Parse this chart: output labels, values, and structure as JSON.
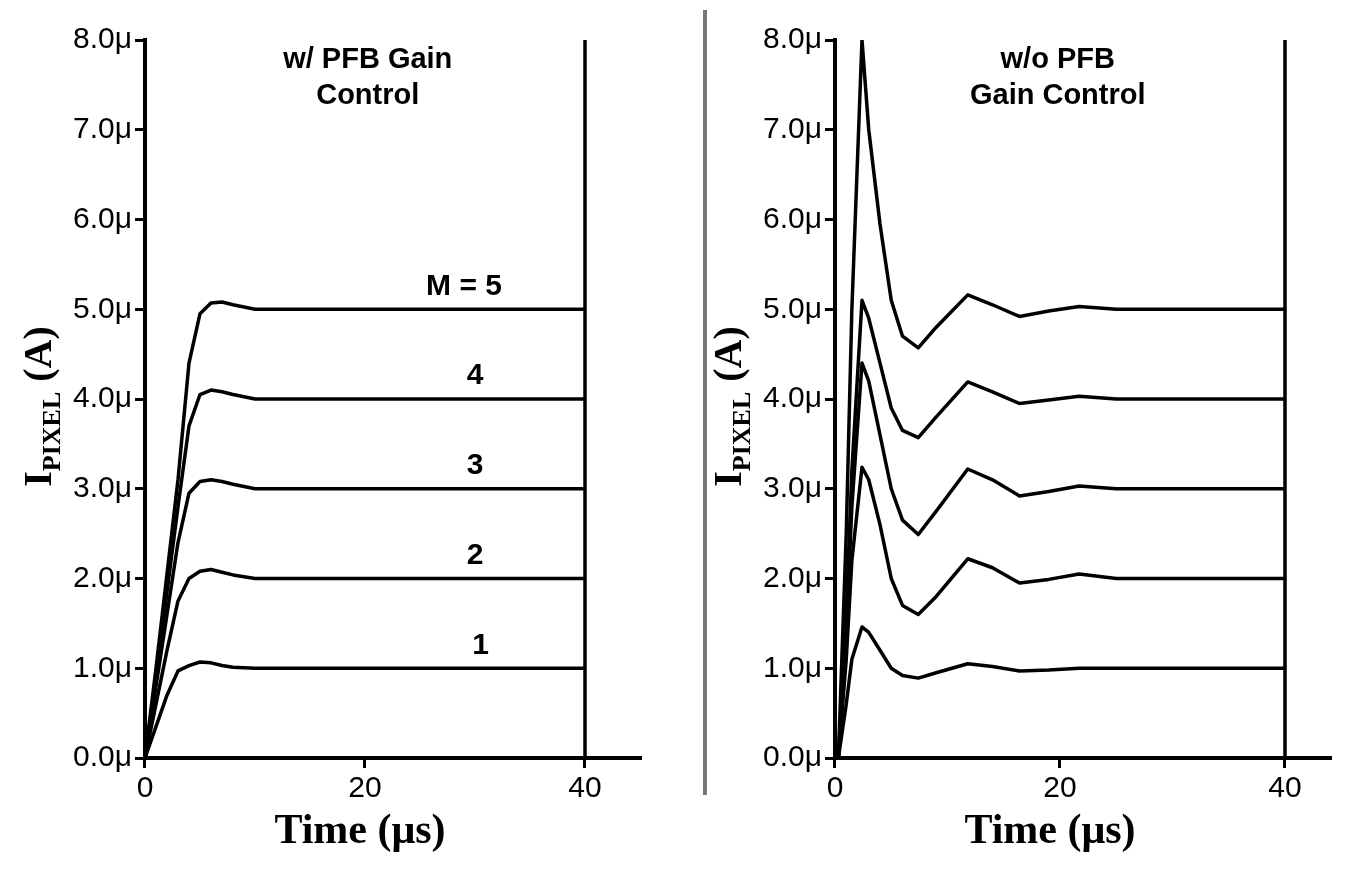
{
  "chart_data": [
    {
      "type": "line",
      "title": "w/ PFB Gain Control",
      "xlabel": "Time (μs)",
      "ylabel": "I$_{PIXEL}$ (A)",
      "xlim": [
        0,
        45
      ],
      "xticks": [
        0,
        20,
        40
      ],
      "ylim": [
        0,
        8
      ],
      "yticks": [
        {
          "value": 0,
          "label": "0.0μ"
        },
        {
          "value": 1,
          "label": "1.0μ"
        },
        {
          "value": 2,
          "label": "2.0μ"
        },
        {
          "value": 3,
          "label": "3.0μ"
        },
        {
          "value": 4,
          "label": "4.0μ"
        },
        {
          "value": 5,
          "label": "5.0μ"
        },
        {
          "value": 6,
          "label": "6.0μ"
        },
        {
          "value": 7,
          "label": "7.0μ"
        },
        {
          "value": 8,
          "label": "8.0μ"
        }
      ],
      "x": [
        0,
        1,
        2,
        3,
        4,
        5,
        6,
        7,
        8,
        10,
        20,
        30,
        40
      ],
      "series": [
        {
          "color": "#000000",
          "values": [
            0,
            0.35,
            0.7,
            0.97,
            1.03,
            1.07,
            1.06,
            1.03,
            1.01,
            1.0,
            1.0,
            1.0,
            1.0
          ]
        },
        {
          "color": "#000000",
          "values": [
            0,
            0.6,
            1.2,
            1.75,
            2.0,
            2.08,
            2.1,
            2.07,
            2.04,
            2.0,
            2.0,
            2.0,
            2.0
          ]
        },
        {
          "color": "#000000",
          "values": [
            0,
            0.8,
            1.6,
            2.4,
            2.95,
            3.08,
            3.1,
            3.08,
            3.05,
            3.0,
            3.0,
            3.0,
            3.0
          ]
        },
        {
          "color": "#000000",
          "values": [
            0,
            0.9,
            1.85,
            2.8,
            3.7,
            4.05,
            4.1,
            4.08,
            4.05,
            4.0,
            4.0,
            4.0,
            4.0
          ]
        },
        {
          "color": "#000000",
          "values": [
            0,
            1.0,
            2.05,
            3.1,
            4.4,
            4.95,
            5.07,
            5.08,
            5.05,
            5.0,
            5.0,
            5.0,
            5.0
          ]
        }
      ],
      "ref_lines": [
        {
          "axis": "x",
          "value": 40,
          "color": "#000000"
        }
      ],
      "annotations": [
        {
          "text": "M = 5",
          "x": 29,
          "y": 5
        },
        {
          "text": "4",
          "x": 30,
          "y": 4
        },
        {
          "text": "3",
          "x": 30,
          "y": 3
        },
        {
          "text": "2",
          "x": 30,
          "y": 2
        },
        {
          "text": "1",
          "x": 30.5,
          "y": 1
        }
      ]
    },
    {
      "type": "line",
      "title": "w/o PFB Gain Control",
      "xlabel": "Time (μs)",
      "ylabel": "I$_{PIXEL}$ (A)",
      "xlim": [
        0,
        44
      ],
      "xticks": [
        0,
        20,
        40
      ],
      "ylim": [
        0,
        8
      ],
      "yticks": [
        {
          "value": 0,
          "label": "0.0μ"
        },
        {
          "value": 1,
          "label": "1.0μ"
        },
        {
          "value": 2,
          "label": "2.0μ"
        },
        {
          "value": 3,
          "label": "3.0μ"
        },
        {
          "value": 4,
          "label": "4.0μ"
        },
        {
          "value": 5,
          "label": "5.0μ"
        },
        {
          "value": 6,
          "label": "6.0μ"
        },
        {
          "value": 7,
          "label": "7.0μ"
        },
        {
          "value": 8,
          "label": "8.0μ"
        }
      ],
      "x": [
        0,
        0.3,
        1,
        1.5,
        2.4,
        3,
        4,
        5,
        6,
        7.4,
        9,
        11.8,
        14,
        16.4,
        19,
        21.7,
        25,
        30,
        40
      ],
      "series": [
        {
          "color": "#000000",
          "values": [
            0,
            0,
            0.6,
            1.1,
            1.46,
            1.4,
            1.2,
            1.0,
            0.92,
            0.89,
            0.95,
            1.05,
            1.02,
            0.97,
            0.98,
            1.0,
            1.0,
            1.0,
            1.0
          ]
        },
        {
          "color": "#000000",
          "values": [
            0,
            0,
            1.1,
            2.2,
            3.24,
            3.1,
            2.6,
            2.0,
            1.7,
            1.6,
            1.8,
            2.22,
            2.12,
            1.95,
            1.99,
            2.05,
            2.0,
            2.0,
            2.0
          ]
        },
        {
          "color": "#000000",
          "values": [
            0,
            0,
            1.4,
            2.8,
            4.4,
            4.2,
            3.6,
            3.0,
            2.65,
            2.49,
            2.75,
            3.22,
            3.1,
            2.92,
            2.97,
            3.03,
            3.0,
            3.0,
            3.0
          ]
        },
        {
          "color": "#000000",
          "values": [
            0,
            0,
            1.6,
            3.2,
            5.1,
            4.9,
            4.4,
            3.9,
            3.65,
            3.57,
            3.8,
            4.19,
            4.08,
            3.95,
            3.99,
            4.03,
            4.0,
            4.0,
            4.0
          ]
        },
        {
          "color": "#000000",
          "values": [
            0,
            0,
            2.5,
            5,
            8.0,
            7.0,
            5.95,
            5.1,
            4.7,
            4.57,
            4.8,
            5.16,
            5.05,
            4.92,
            4.98,
            5.03,
            5.0,
            5.0,
            5.0
          ]
        }
      ],
      "ref_lines": [
        {
          "axis": "x",
          "value": 40,
          "color": "#000000"
        }
      ]
    }
  ]
}
